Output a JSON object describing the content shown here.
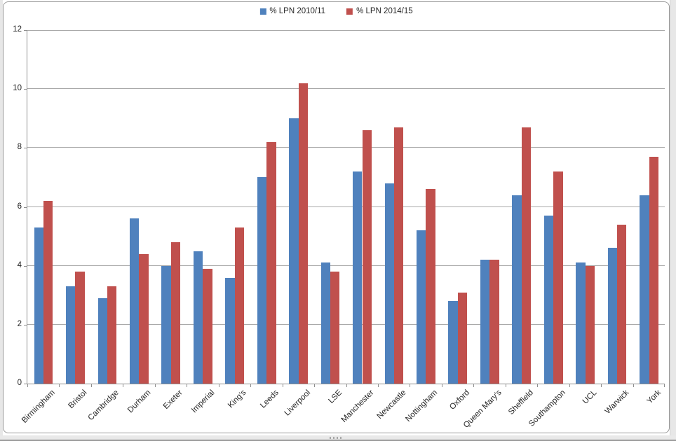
{
  "page": {
    "background": "#ffffff",
    "margin_color": "#e7e7e7"
  },
  "chart": {
    "background": "#ffffff",
    "border_color": "#9a9a9a"
  },
  "chart_data": {
    "type": "bar",
    "title": "",
    "xlabel": "",
    "ylabel": "",
    "categories": [
      "Birmingham",
      "Bristol",
      "Cambridge",
      "Durham",
      "Exeter",
      "Imperial",
      "King's",
      "Leeds",
      "Liverpool",
      "LSE",
      "Manchester",
      "Newcastle",
      "Nottingham",
      "Oxford",
      "Queen Mary's",
      "Sheffield",
      "Southampton",
      "UCL",
      "Warwick",
      "York"
    ],
    "series": [
      {
        "name": "% LPN 2010/11",
        "color": "#4F81BD",
        "values": [
          5.3,
          3.3,
          2.9,
          5.6,
          4.0,
          4.5,
          3.6,
          7.0,
          9.0,
          4.1,
          7.2,
          6.8,
          5.2,
          2.8,
          4.2,
          6.4,
          5.7,
          4.1,
          4.6,
          6.4
        ]
      },
      {
        "name": "% LPN 2014/15",
        "color": "#C0504D",
        "values": [
          6.2,
          3.8,
          3.3,
          4.4,
          4.8,
          3.9,
          5.3,
          8.2,
          10.2,
          3.8,
          8.6,
          8.7,
          6.6,
          3.1,
          4.2,
          8.7,
          7.2,
          4.0,
          5.4,
          7.7
        ]
      }
    ],
    "ylim": [
      0,
      12
    ],
    "ytick_step": 2,
    "grid": true,
    "legend_position": "top-center",
    "gridline_color": "#a9a9a9",
    "axis_color": "#8f8f8f",
    "label_color": "#262626"
  }
}
